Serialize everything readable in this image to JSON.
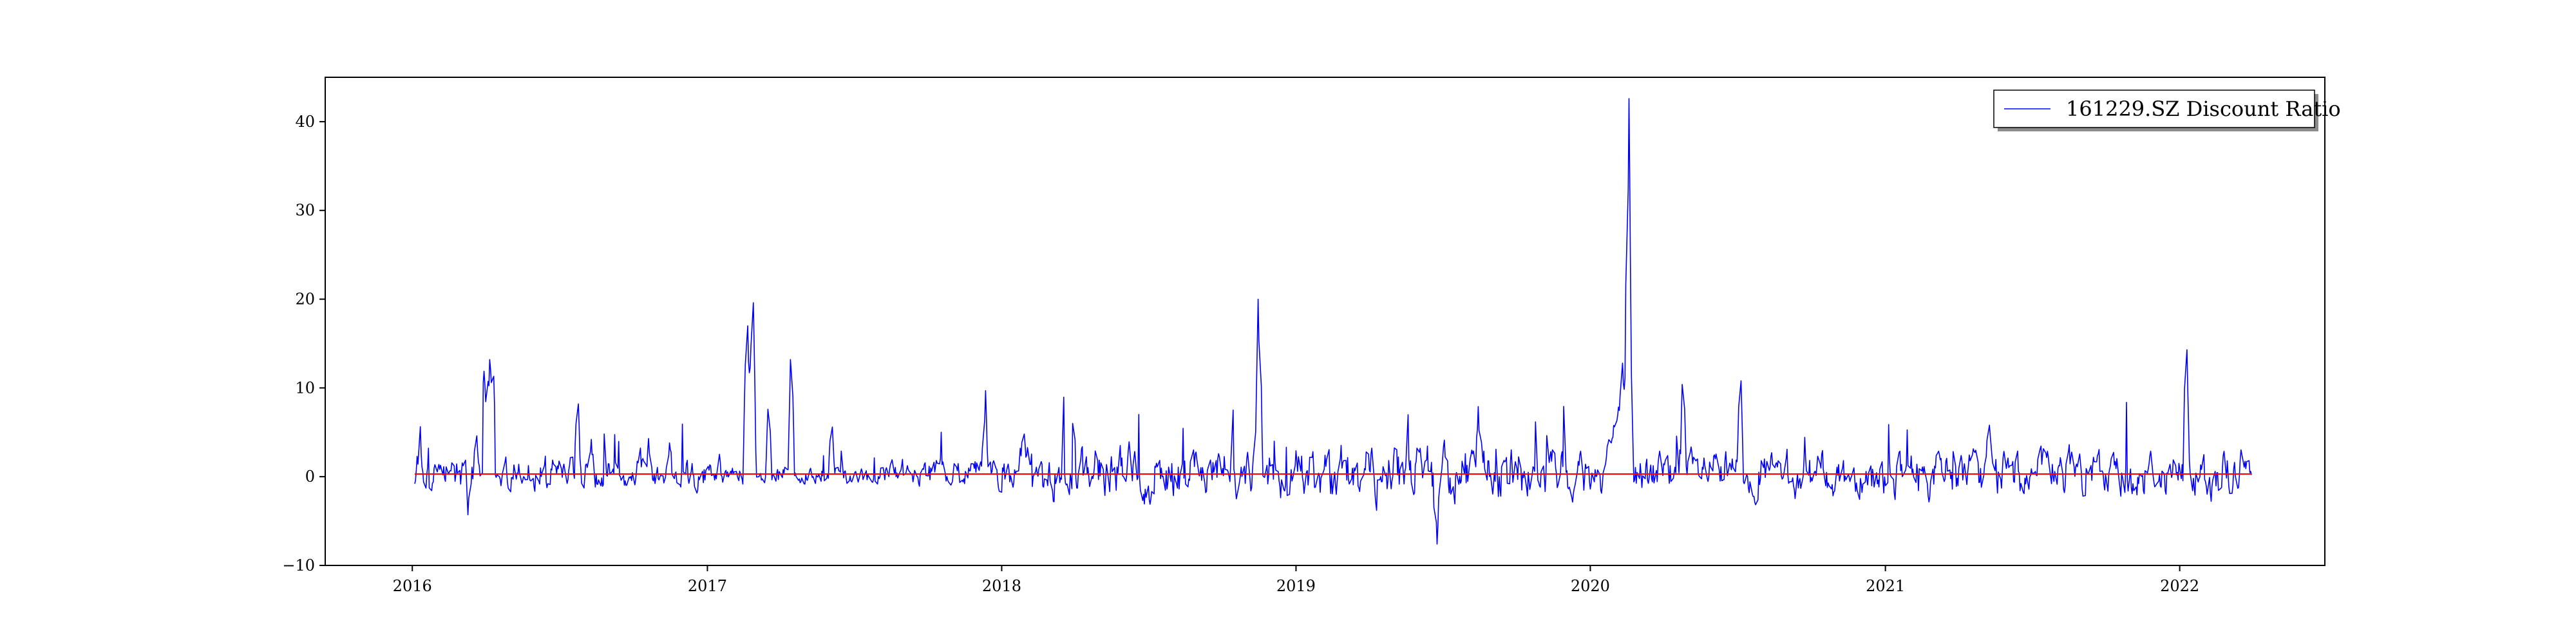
{
  "chart_data": {
    "type": "line",
    "title": "",
    "xlabel": "",
    "ylabel": "",
    "xlim": [
      "2015-09-15",
      "2022-06-30"
    ],
    "ylim": [
      -10,
      45
    ],
    "x_ticks": [
      "2016",
      "2017",
      "2018",
      "2019",
      "2020",
      "2021",
      "2022"
    ],
    "y_ticks": [
      "−10",
      "0",
      "10",
      "20",
      "30",
      "40"
    ],
    "grid": false,
    "legend": {
      "placement": "top-right",
      "entries": [
        "161229.SZ Discount Ratio"
      ]
    },
    "date_range": [
      "2016-01-04",
      "2022-03-31"
    ],
    "series": [
      {
        "name": "161229.SZ Discount Ratio",
        "color": "#0000ff",
        "key_points": [
          {
            "x": "2016-01-04",
            "y": -0.8
          },
          {
            "x": "2016-03-10",
            "y": -4.3
          },
          {
            "x": "2016-03-20",
            "y": 4.6
          },
          {
            "x": "2016-04-06",
            "y": 13.2
          },
          {
            "x": "2016-04-16",
            "y": 0.2
          },
          {
            "x": "2016-07-25",
            "y": 8.2
          },
          {
            "x": "2016-08-10",
            "y": 4.2
          },
          {
            "x": "2016-10-20",
            "y": 4.3
          },
          {
            "x": "2016-11-15",
            "y": 3.8
          },
          {
            "x": "2017-02-20",
            "y": 17.0
          },
          {
            "x": "2017-02-26",
            "y": 19.6
          },
          {
            "x": "2017-03-05",
            "y": 0.0
          },
          {
            "x": "2017-03-18",
            "y": 7.6
          },
          {
            "x": "2017-04-15",
            "y": 13.2
          },
          {
            "x": "2017-06-05",
            "y": 5.6
          },
          {
            "x": "2017-12-12",
            "y": 9.7
          },
          {
            "x": "2018-01-28",
            "y": 4.8
          },
          {
            "x": "2018-11-15",
            "y": 20.0
          },
          {
            "x": "2019-06-25",
            "y": -7.6
          },
          {
            "x": "2019-08-15",
            "y": 7.9
          },
          {
            "x": "2020-02-10",
            "y": 12.8
          },
          {
            "x": "2020-02-18",
            "y": 42.6
          },
          {
            "x": "2020-04-25",
            "y": 10.4
          },
          {
            "x": "2020-07-05",
            "y": 10.8
          },
          {
            "x": "2021-05-10",
            "y": 5.8
          },
          {
            "x": "2022-01-10",
            "y": 14.3
          },
          {
            "x": "2022-03-31",
            "y": 0.2
          }
        ]
      },
      {
        "name": "",
        "color": "#ff0000",
        "points": [
          {
            "x": "2016-01-04",
            "y": 0.3
          },
          {
            "x": "2022-03-31",
            "y": 0.3
          }
        ]
      }
    ]
  }
}
